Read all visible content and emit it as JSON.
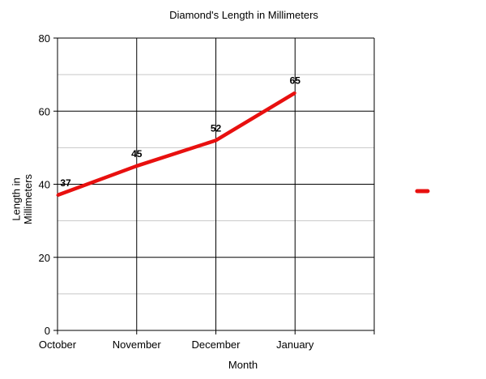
{
  "chart_data": {
    "type": "line",
    "title": "Diamond's Length in Millimeters",
    "xlabel": "Month",
    "ylabel": "Length in Millimeters",
    "categories": [
      "October",
      "November",
      "December",
      "January"
    ],
    "series": [
      {
        "values": [
          37,
          45,
          52,
          65
        ],
        "color": "#e8100f"
      }
    ],
    "ylim": [
      0,
      80
    ],
    "yticks": [
      0,
      20,
      40,
      60,
      80
    ],
    "data_labels": [
      "37",
      "45",
      "52",
      "65"
    ],
    "grid": true,
    "legend": "right"
  }
}
